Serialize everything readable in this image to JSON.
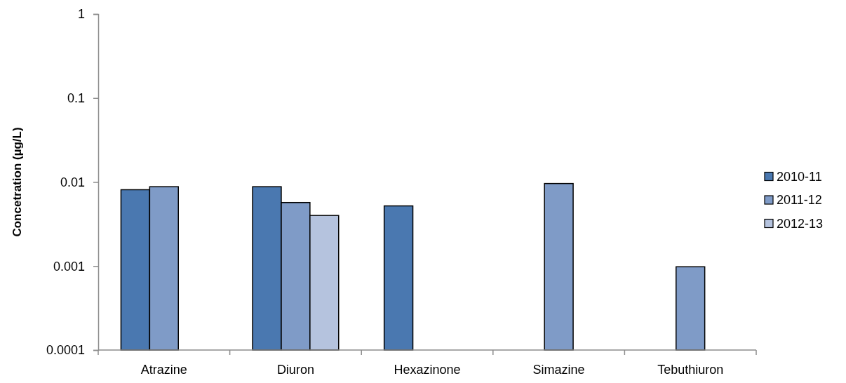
{
  "chart_data": {
    "type": "bar",
    "ylabel": "Concetration (µg/L)",
    "categories": [
      "Atrazine",
      "Diuron",
      "Hexazinone",
      "Simazine",
      "Tebuthiuron"
    ],
    "series": [
      {
        "name": "2010-11",
        "color": "#4a78b0",
        "values": [
          0.0081,
          0.0088,
          0.0052,
          null,
          null
        ]
      },
      {
        "name": "2011-12",
        "color": "#7f9bc7",
        "values": [
          0.0088,
          0.0057,
          null,
          0.0096,
          0.00098
        ]
      },
      {
        "name": "2012-13",
        "color": "#b5c3de",
        "values": [
          null,
          0.004,
          null,
          null,
          null
        ]
      }
    ],
    "log": true,
    "ylim": [
      0.0001,
      1
    ],
    "yticks": [
      0.0001,
      0.001,
      0.01,
      0.1,
      1
    ],
    "legend": "right"
  }
}
